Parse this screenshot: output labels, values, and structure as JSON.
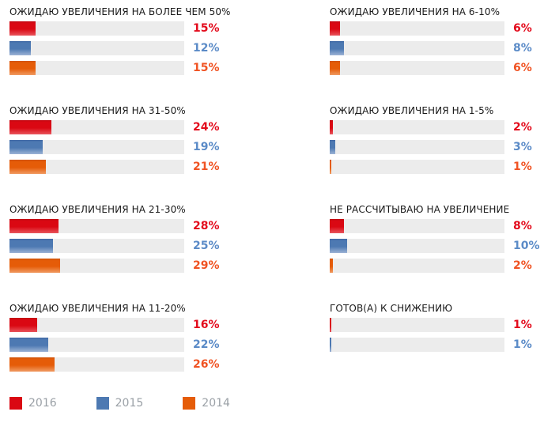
{
  "colors": {
    "track": "#ececec",
    "title_text": "#1a1a1a",
    "legend_text": "#9aa0a6",
    "series": {
      "2016": {
        "dark": "#c00711",
        "main": "#da0813",
        "light": "#e8555c",
        "label": "#e30b1c"
      },
      "2015": {
        "dark": "#3f68a4",
        "main": "#4d79b2",
        "light": "#9cb3d5",
        "label": "#5b8bc7"
      },
      "2014": {
        "dark": "#cf5207",
        "main": "#e55c08",
        "light": "#f09b63",
        "label": "#f05323"
      }
    }
  },
  "columns": {
    "left": [
      {
        "title": "ОЖИДАЮ УВЕЛИЧЕНИЯ НА БОЛЕЕ ЧЕМ 50%",
        "bars": [
          {
            "year": "2016",
            "value": 15,
            "label": "15%"
          },
          {
            "year": "2015",
            "value": 12,
            "label": "12%"
          },
          {
            "year": "2014",
            "value": 15,
            "label": "15%"
          }
        ]
      },
      {
        "title": "ОЖИДАЮ УВЕЛИЧЕНИЯ НА 31-50%",
        "bars": [
          {
            "year": "2016",
            "value": 24,
            "label": "24%"
          },
          {
            "year": "2015",
            "value": 19,
            "label": "19%"
          },
          {
            "year": "2014",
            "value": 21,
            "label": "21%"
          }
        ]
      },
      {
        "title": "ОЖИДАЮ УВЕЛИЧЕНИЯ НА 21-30%",
        "bars": [
          {
            "year": "2016",
            "value": 28,
            "label": "28%"
          },
          {
            "year": "2015",
            "value": 25,
            "label": "25%"
          },
          {
            "year": "2014",
            "value": 29,
            "label": "29%"
          }
        ]
      },
      {
        "title": "ОЖИДАЮ УВЕЛИЧЕНИЯ НА 11-20%",
        "bars": [
          {
            "year": "2016",
            "value": 16,
            "label": "16%"
          },
          {
            "year": "2015",
            "value": 22,
            "label": "22%"
          },
          {
            "year": "2014",
            "value": 26,
            "label": "26%"
          }
        ]
      }
    ],
    "right": [
      {
        "title": "ОЖИДАЮ УВЕЛИЧЕНИЯ НА 6-10%",
        "bars": [
          {
            "year": "2016",
            "value": 6,
            "label": "6%"
          },
          {
            "year": "2015",
            "value": 8,
            "label": "8%"
          },
          {
            "year": "2014",
            "value": 6,
            "label": "6%"
          }
        ]
      },
      {
        "title": "ОЖИДАЮ УВЕЛИЧЕНИЯ НА 1-5%",
        "bars": [
          {
            "year": "2016",
            "value": 2,
            "label": "2%"
          },
          {
            "year": "2015",
            "value": 3,
            "label": "3%"
          },
          {
            "year": "2014",
            "value": 1,
            "label": "1%"
          }
        ]
      },
      {
        "title": "НЕ РАССЧИТЫВАЮ НА УВЕЛИЧЕНИЕ",
        "bars": [
          {
            "year": "2016",
            "value": 8,
            "label": "8%"
          },
          {
            "year": "2015",
            "value": 10,
            "label": "10%"
          },
          {
            "year": "2014",
            "value": 2,
            "label": "2%"
          }
        ]
      },
      {
        "title": "ГОТОВ(А) К СНИЖЕНИЮ",
        "bars": [
          {
            "year": "2016",
            "value": 1,
            "label": "1%"
          },
          {
            "year": "2015",
            "value": 1,
            "label": "1%"
          }
        ]
      }
    ]
  },
  "legend": {
    "items": [
      {
        "label": "2016",
        "year": "2016"
      },
      {
        "label": "2015",
        "year": "2015"
      },
      {
        "label": "2014",
        "year": "2014"
      }
    ]
  },
  "chart_data": {
    "type": "bar",
    "orientation": "horizontal",
    "unit": "%",
    "categories": [
      "ОЖИДАЮ УВЕЛИЧЕНИЯ НА БОЛЕЕ ЧЕМ 50%",
      "ОЖИДАЮ УВЕЛИЧЕНИЯ НА 31-50%",
      "ОЖИДАЮ УВЕЛИЧЕНИЯ НА 21-30%",
      "ОЖИДАЮ УВЕЛИЧЕНИЯ НА 11-20%",
      "ОЖИДАЮ УВЕЛИЧЕНИЯ НА 6-10%",
      "ОЖИДАЮ УВЕЛИЧЕНИЯ НА 1-5%",
      "НЕ РАССЧИТЫВАЮ НА УВЕЛИЧЕНИЕ",
      "ГОТОВ(А) К СНИЖЕНИЮ"
    ],
    "series": [
      {
        "name": "2016",
        "color": "#da0813",
        "values": [
          15,
          24,
          28,
          16,
          6,
          2,
          8,
          1
        ]
      },
      {
        "name": "2015",
        "color": "#4d79b2",
        "values": [
          12,
          19,
          25,
          22,
          8,
          3,
          10,
          1
        ]
      },
      {
        "name": "2014",
        "color": "#e55c08",
        "values": [
          15,
          21,
          29,
          26,
          6,
          1,
          2,
          null
        ]
      }
    ],
    "xlim": [
      0,
      100
    ],
    "value_labels": true,
    "grid": false,
    "legend_position": "bottom-left",
    "layout": "two-column, four category groups per column"
  }
}
